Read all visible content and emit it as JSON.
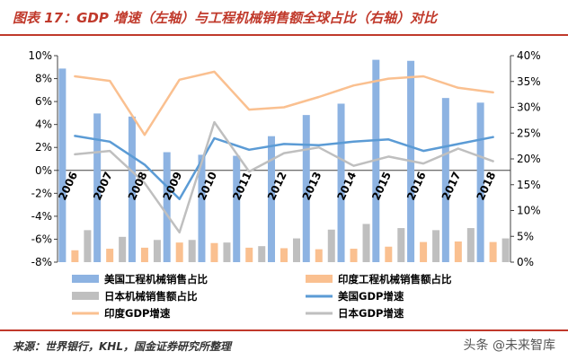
{
  "header": {
    "title": "图表 17：GDP 增速（左轴）与工程机械销售额全球占比（右轴）对比"
  },
  "footer": {
    "source": "来源：世界银行，KHL，国金证券研究所整理",
    "watermark": "头条 @未来智库"
  },
  "chart_data": {
    "type": "bar",
    "categories": [
      "2006",
      "2007",
      "2008",
      "2009",
      "2010",
      "2011",
      "2012",
      "2013",
      "2014",
      "2015",
      "2016",
      "2017",
      "2018"
    ],
    "left_axis": {
      "ylim": [
        -8,
        10
      ],
      "ticks": [
        -8,
        -6,
        -4,
        -2,
        0,
        2,
        4,
        6,
        8,
        10
      ],
      "tick_labels": [
        "-8%",
        "-6%",
        "-4%",
        "-2%",
        "0%",
        "2%",
        "4%",
        "6%",
        "8%",
        "10%"
      ]
    },
    "right_axis": {
      "ylim": [
        0,
        40
      ],
      "ticks": [
        0,
        5,
        10,
        15,
        20,
        25,
        30,
        35,
        40
      ],
      "tick_labels": [
        "0%",
        "5%",
        "10%",
        "15%",
        "20%",
        "25%",
        "30%",
        "35%",
        "40%"
      ]
    },
    "bar_series": [
      {
        "name": "美国工程机械销售占比",
        "color": "#8db3e2",
        "axis": "right",
        "values": [
          37.5,
          28.8,
          28.2,
          21.3,
          20.8,
          20.6,
          24.4,
          28.5,
          30.7,
          39.2,
          39.0,
          31.8,
          30.9
        ]
      },
      {
        "name": "印度工程机械销售额占比",
        "color": "#fac090",
        "axis": "right",
        "values": [
          2.3,
          2.6,
          2.8,
          3.8,
          3.7,
          2.8,
          2.7,
          2.5,
          2.6,
          3.0,
          3.9,
          4.0,
          3.9
        ]
      },
      {
        "name": "日本机械销售额占比",
        "color": "#bfbfbf",
        "axis": "right",
        "values": [
          6.2,
          4.9,
          4.3,
          4.3,
          3.8,
          3.1,
          4.6,
          6.3,
          7.4,
          6.6,
          6.2,
          6.6,
          4.6
        ]
      }
    ],
    "line_series": [
      {
        "name": "美国GDP增速",
        "color": "#5b9bd5",
        "axis": "left",
        "values": [
          3.0,
          2.5,
          0.5,
          -2.5,
          2.8,
          1.8,
          2.3,
          2.2,
          2.5,
          2.7,
          1.7,
          2.3,
          2.9
        ]
      },
      {
        "name": "印度GDP增速",
        "color": "#fac090",
        "axis": "left",
        "values": [
          8.2,
          7.8,
          3.1,
          7.9,
          8.6,
          5.3,
          5.5,
          6.4,
          7.4,
          8.0,
          8.2,
          7.2,
          6.8
        ]
      },
      {
        "name": "日本GDP增速",
        "color": "#bfbfbf",
        "axis": "left",
        "values": [
          1.4,
          1.7,
          -1.1,
          -5.4,
          4.2,
          -0.1,
          1.5,
          2.0,
          0.4,
          1.2,
          0.6,
          1.9,
          0.8
        ]
      }
    ],
    "legend_position": "bottom",
    "grid": false
  }
}
